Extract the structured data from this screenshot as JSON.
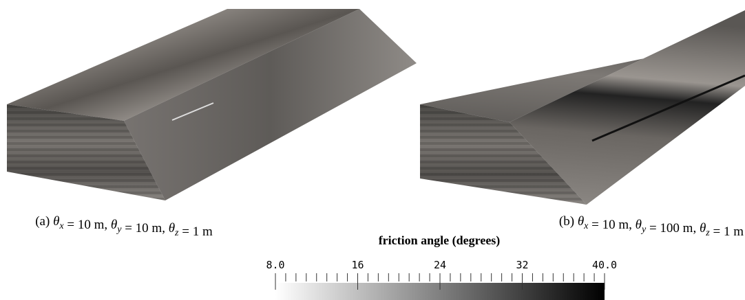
{
  "panels": [
    {
      "caption": [
        {
          "t": "(a) "
        },
        {
          "t": "θ",
          "sub": "x"
        },
        {
          "t": " = 10 m, "
        },
        {
          "t": "θ",
          "sub": "y"
        },
        {
          "t": " = 10 m, "
        },
        {
          "t": "θ",
          "sub": "z"
        },
        {
          "t": " = 1 m"
        }
      ]
    },
    {
      "caption": [
        {
          "t": "(b) "
        },
        {
          "t": "θ",
          "sub": "x"
        },
        {
          "t": " = 10 m, "
        },
        {
          "t": "θ",
          "sub": "y"
        },
        {
          "t": " = 100 m, "
        },
        {
          "t": "θ",
          "sub": "z"
        },
        {
          "t": " = 1 m"
        }
      ]
    }
  ],
  "colorbar": {
    "title": "friction angle (degrees)",
    "lim": [
      8,
      40
    ],
    "ticks": [
      {
        "value": 8,
        "label": "8.0"
      },
      16,
      24,
      32,
      {
        "value": 40,
        "label": "40.0"
      }
    ]
  }
}
